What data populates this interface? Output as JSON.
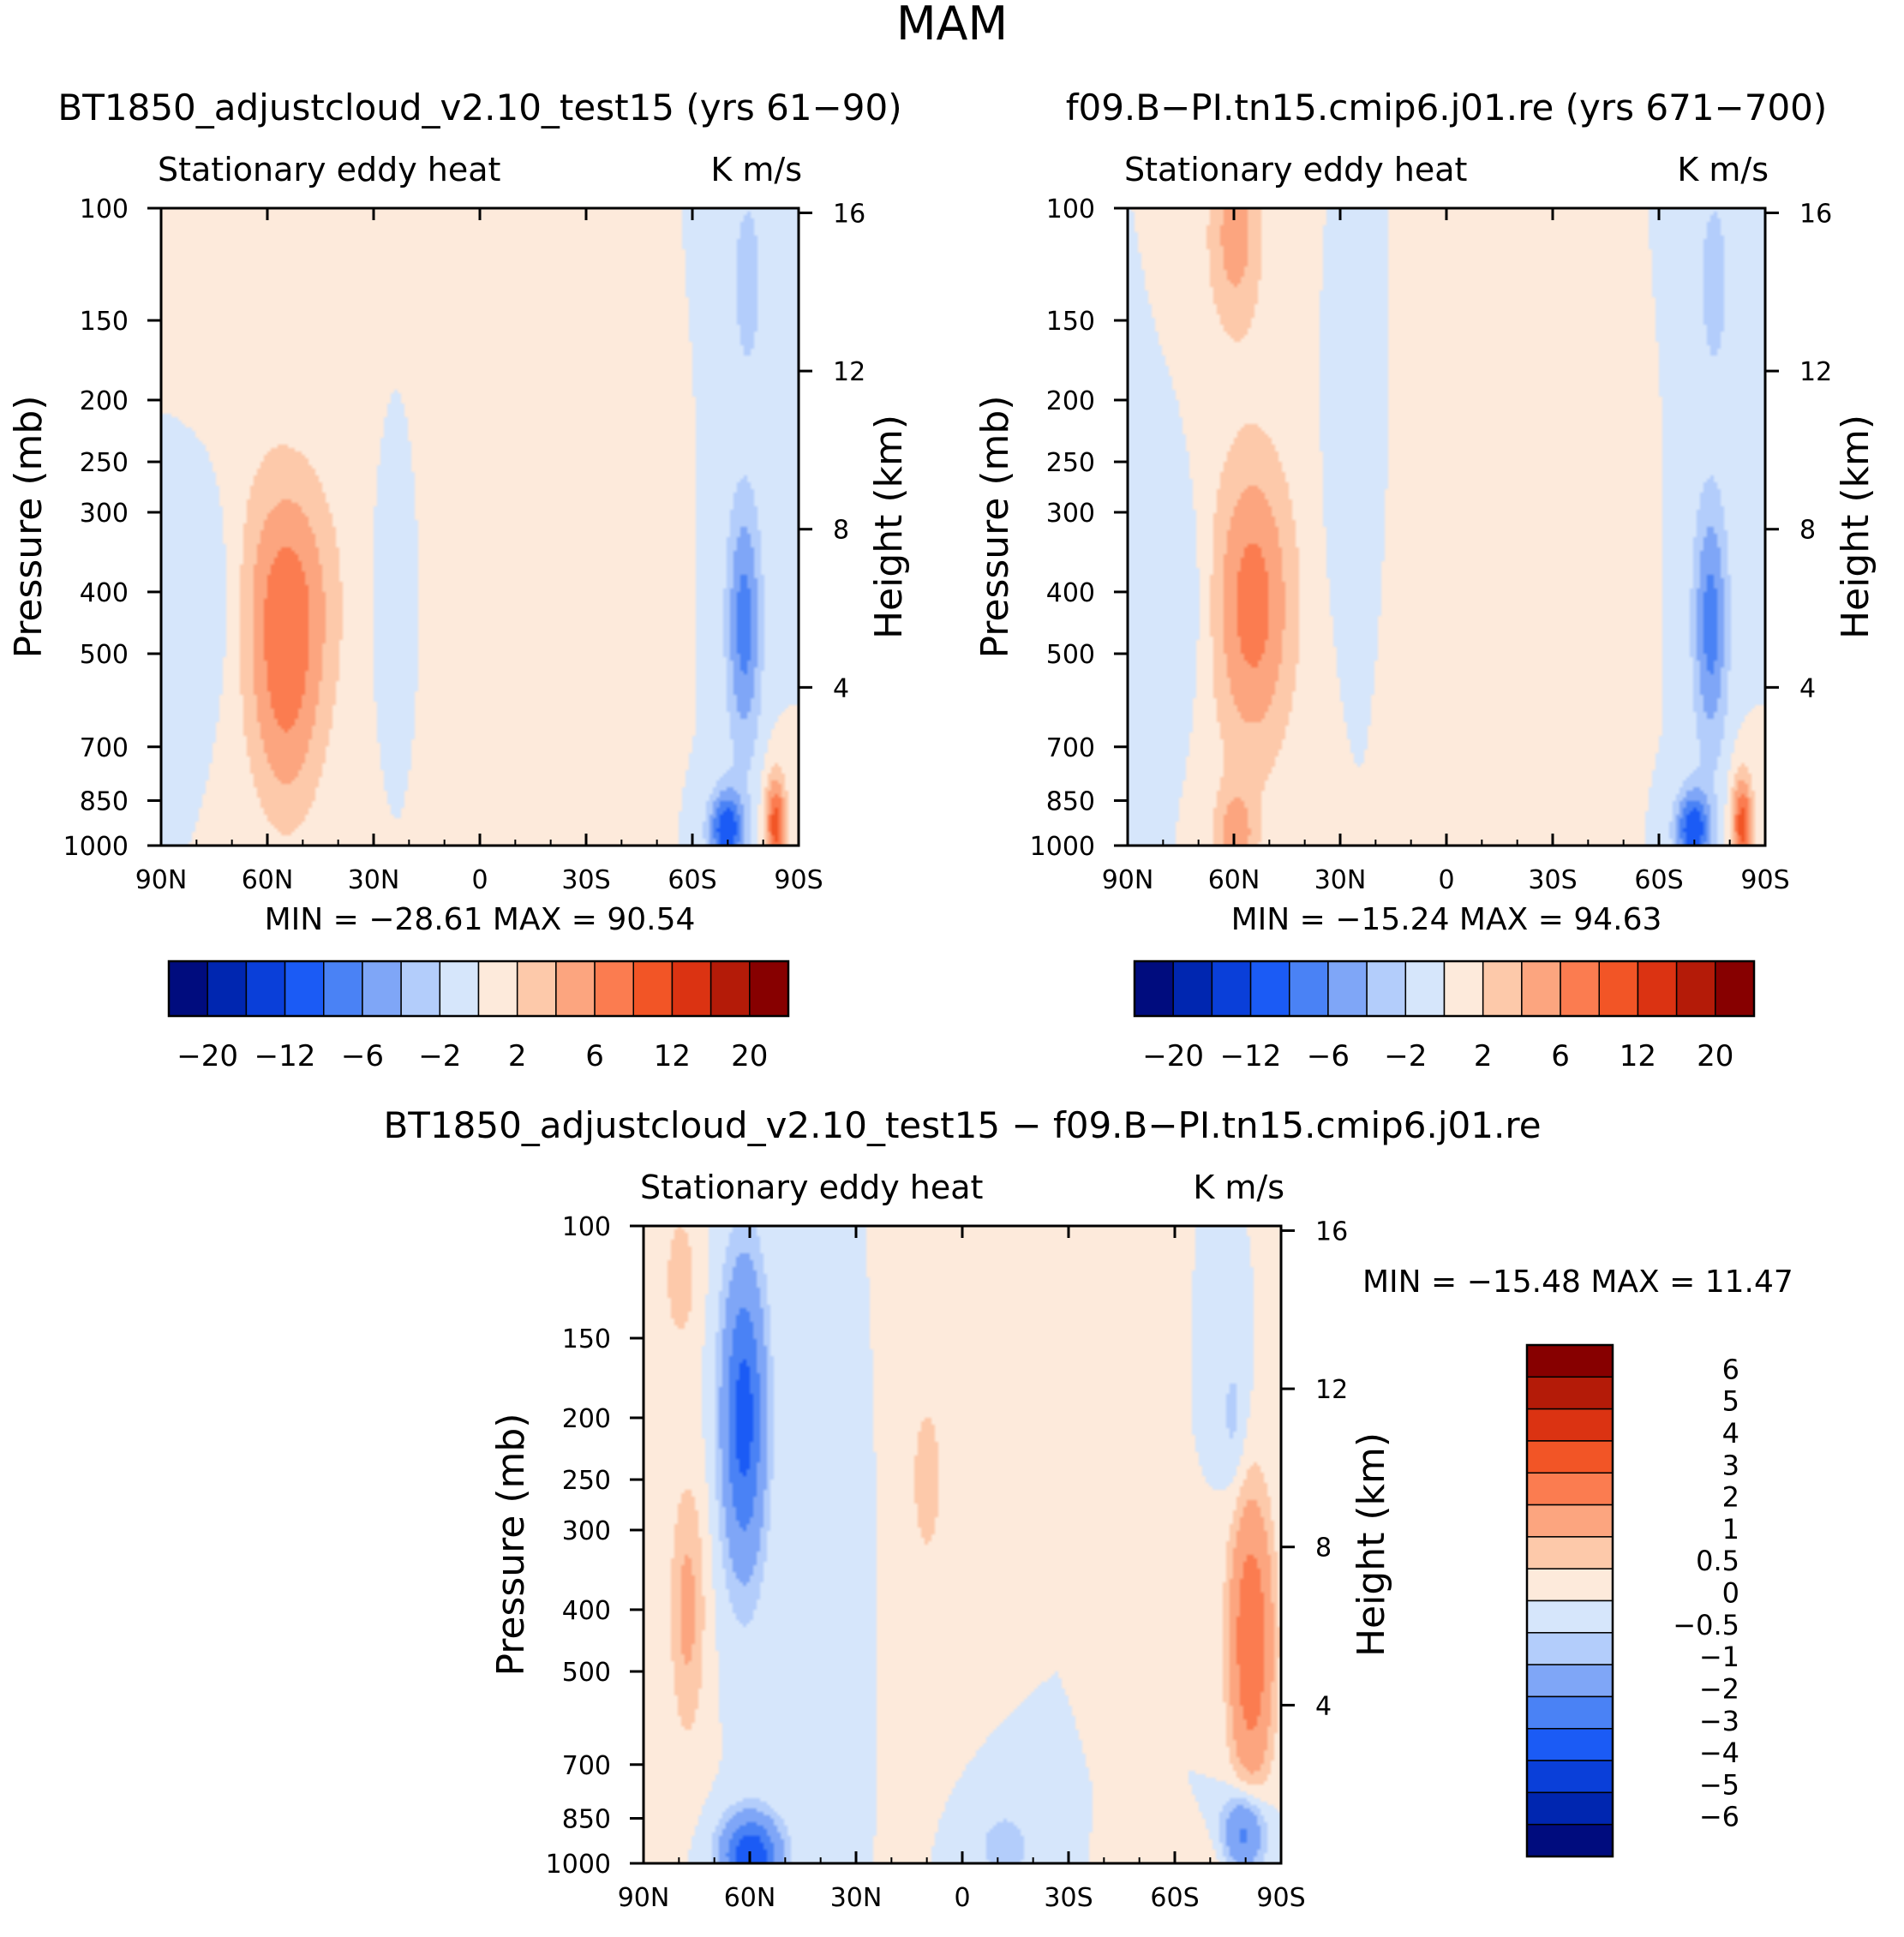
{
  "chart_data": {
    "type": "heatmap",
    "title": "MAM",
    "panels": [
      {
        "id": "top-left",
        "title": "BT1850_adjustcloud_v2.10_test15 (yrs 61-90)",
        "left_label": "Stationary eddy heat",
        "right_label": "K m/s",
        "ylabel": "Pressure (mb)",
        "ylabel_right": "Height (km)",
        "x_ticks": [
          "90N",
          "60N",
          "30N",
          "0",
          "30S",
          "60S",
          "90S"
        ],
        "y_ticks": [
          100,
          150,
          200,
          250,
          300,
          400,
          500,
          700,
          850,
          1000
        ],
        "y_ticks_right": [
          4,
          8,
          12,
          16
        ],
        "stats": "MIN = -28.61   MAX =  90.54",
        "min": -28.61,
        "max": 90.54,
        "colorbar": "horizontal",
        "levels": [
          "-20",
          "-12",
          "-6",
          "-2",
          "2",
          "6",
          "12",
          "20"
        ],
        "features": [
          {
            "lat": 55,
            "p": 420,
            "w": 14,
            "h": 2.8,
            "a": 7
          },
          {
            "lat": 55,
            "p": 700,
            "w": 10,
            "h": 2.2,
            "a": 3
          },
          {
            "lat": 65,
            "p": 130,
            "w": 12,
            "h": 2.5,
            "a": 1.5
          },
          {
            "lat": 75,
            "p": 420,
            "w": 10,
            "h": 2.2,
            "a": -1.8
          },
          {
            "lat": 25,
            "p": 420,
            "w": 6,
            "h": 2.0,
            "a": -0.8
          },
          {
            "lat": 5,
            "p": 420,
            "w": 10,
            "h": 3.0,
            "a": 0.7
          },
          {
            "lat": -50,
            "p": 450,
            "w": 5,
            "h": 2.5,
            "a": 0.6
          },
          {
            "lat": -75,
            "p": 450,
            "w": 5,
            "h": 2.6,
            "a": -7
          },
          {
            "lat": -76,
            "p": 130,
            "w": 5,
            "h": 2.2,
            "a": -3
          },
          {
            "lat": -84,
            "p": 930,
            "w": 3,
            "h": 1.0,
            "a": 9
          },
          {
            "lat": -70,
            "p": 950,
            "w": 5,
            "h": 0.8,
            "a": -10
          }
        ]
      },
      {
        "id": "top-right",
        "title": "f09.B-PI.tn15.cmip6.j01.re (yrs 671-700)",
        "left_label": "Stationary eddy heat",
        "right_label": "K m/s",
        "ylabel": "Pressure (mb)",
        "ylabel_right": "Height (km)",
        "x_ticks": [
          "90N",
          "60N",
          "30N",
          "0",
          "30S",
          "60S",
          "90S"
        ],
        "y_ticks": [
          100,
          150,
          200,
          250,
          300,
          400,
          500,
          700,
          850,
          1000
        ],
        "y_ticks_right": [
          4,
          8,
          12,
          16
        ],
        "stats": "MIN = -15.24   MAX =  94.63",
        "min": -15.24,
        "max": 94.63,
        "colorbar": "horizontal",
        "levels": [
          "-20",
          "-12",
          "-6",
          "-2",
          "2",
          "6",
          "12",
          "20"
        ],
        "features": [
          {
            "lat": 55,
            "p": 420,
            "w": 12,
            "h": 3.2,
            "a": 7
          },
          {
            "lat": 60,
            "p": 110,
            "w": 8,
            "h": 2.0,
            "a": 5
          },
          {
            "lat": 60,
            "p": 980,
            "w": 6,
            "h": 1.0,
            "a": 5
          },
          {
            "lat": 76,
            "p": 420,
            "w": 9,
            "h": 2.2,
            "a": -2
          },
          {
            "lat": 88,
            "p": 600,
            "w": 6,
            "h": 3.0,
            "a": -0.8
          },
          {
            "lat": 28,
            "p": 300,
            "w": 8,
            "h": 2.5,
            "a": -0.6
          },
          {
            "lat": 5,
            "p": 400,
            "w": 10,
            "h": 3.0,
            "a": 0.6
          },
          {
            "lat": -50,
            "p": 450,
            "w": 5,
            "h": 2.5,
            "a": 0.6
          },
          {
            "lat": -75,
            "p": 450,
            "w": 5,
            "h": 2.6,
            "a": -7
          },
          {
            "lat": -76,
            "p": 130,
            "w": 5,
            "h": 2.2,
            "a": -3
          },
          {
            "lat": -84,
            "p": 930,
            "w": 3,
            "h": 1.0,
            "a": 9
          },
          {
            "lat": -70,
            "p": 950,
            "w": 5,
            "h": 0.8,
            "a": -10
          }
        ]
      },
      {
        "id": "bottom",
        "title": "BT1850_adjustcloud_v2.10_test15 - f09.B-PI.tn15.cmip6.j01.re",
        "left_label": "Stationary eddy heat",
        "right_label": "K m/s",
        "ylabel": "Pressure (mb)",
        "ylabel_right": "Height (km)",
        "x_ticks": [
          "90N",
          "60N",
          "30N",
          "0",
          "30S",
          "60S",
          "90S"
        ],
        "y_ticks": [
          100,
          150,
          200,
          250,
          300,
          400,
          500,
          700,
          850,
          1000
        ],
        "y_ticks_right": [
          4,
          8,
          12,
          16
        ],
        "stats": "MIN = -15.48   MAX =  11.47",
        "min": -15.48,
        "max": 11.47,
        "colorbar": "vertical",
        "levels": [
          "6",
          "5",
          "4",
          "3",
          "2",
          "1",
          "0.5",
          "0",
          "-0.5",
          "-1",
          "-2",
          "-3",
          "-4",
          "-5",
          "-6"
        ],
        "features": [
          {
            "lat": 62,
            "p": 200,
            "w": 6,
            "h": 3.0,
            "a": -3.5
          },
          {
            "lat": 60,
            "p": 980,
            "w": 8,
            "h": 0.8,
            "a": -4
          },
          {
            "lat": 78,
            "p": 400,
            "w": 5,
            "h": 2.6,
            "a": 1.2
          },
          {
            "lat": 80,
            "p": 120,
            "w": 5,
            "h": 1.5,
            "a": 0.8
          },
          {
            "lat": 35,
            "p": 300,
            "w": 6,
            "h": 2.5,
            "a": -0.5
          },
          {
            "lat": 10,
            "p": 250,
            "w": 8,
            "h": 3.0,
            "a": 0.6
          },
          {
            "lat": -50,
            "p": 250,
            "w": 5,
            "h": 3.0,
            "a": 0.4
          },
          {
            "lat": -82,
            "p": 450,
            "w": 6,
            "h": 2.8,
            "a": 3
          },
          {
            "lat": -77,
            "p": 200,
            "w": 4,
            "h": 1.5,
            "a": -0.7
          },
          {
            "lat": -80,
            "p": 900,
            "w": 6,
            "h": 0.8,
            "a": -2.5
          },
          {
            "lat": -12,
            "p": 950,
            "w": 8,
            "h": 0.8,
            "a": -0.8
          },
          {
            "lat": -65,
            "p": 1000,
            "w": 10,
            "h": 0.6,
            "a": 0.5
          }
        ]
      }
    ]
  },
  "colors": {
    "diverging": [
      "#000c7e",
      "#0026b0",
      "#0a3fd9",
      "#1b5bf5",
      "#4a82f5",
      "#7fa6f7",
      "#b3cdfb",
      "#d6e6fb",
      "#fdeadb",
      "#fdc9aa",
      "#fca57f",
      "#fb7c50",
      "#f25526",
      "#db3312",
      "#b41b08",
      "#870000"
    ]
  }
}
